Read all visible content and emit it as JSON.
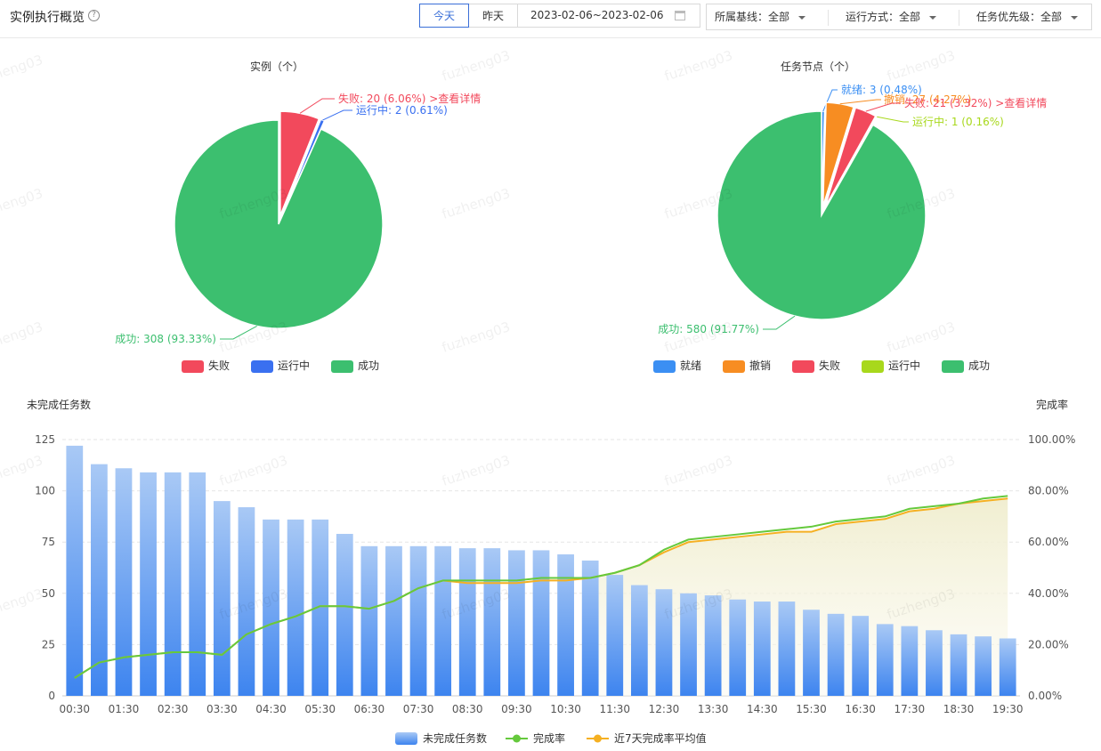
{
  "header": {
    "title": "实例执行概览",
    "help": "?",
    "today": "今天",
    "yesterday": "昨天",
    "date_range": "2023-02-06~2023-02-06",
    "filter_baseline": "所属基线：全部",
    "filter_run_mode": "运行方式：全部",
    "filter_priority": "任务优先级：全部"
  },
  "pie_instances": {
    "title": "实例（个）",
    "slices": [
      {
        "name": "失败",
        "value": 20,
        "pct": "6.06%",
        "color": "#f2495c",
        "label": "失败: 20 (6.06%) >查看详情"
      },
      {
        "name": "运行中",
        "value": 2,
        "pct": "0.61%",
        "color": "#3a70f0",
        "label": "运行中: 2 (0.61%)"
      },
      {
        "name": "成功",
        "value": 308,
        "pct": "93.33%",
        "color": "#3cbf6f",
        "label": "成功: 308 (93.33%)"
      }
    ]
  },
  "pie_nodes": {
    "title": "任务节点（个）",
    "slices": [
      {
        "name": "就绪",
        "value": 3,
        "pct": "0.48%",
        "color": "#3b8ff3",
        "label": "就绪: 3 (0.48%)"
      },
      {
        "name": "撤销",
        "value": 27,
        "pct": "4.27%",
        "color": "#f78d22",
        "label": "撤销: 27 (4.27%)"
      },
      {
        "name": "失败",
        "value": 21,
        "pct": "3.32%",
        "color": "#f2495c",
        "label": "失败: 21 (3.32%) >查看详情"
      },
      {
        "name": "运行中",
        "value": 1,
        "pct": "0.16%",
        "color": "#a8d81c",
        "label": "运行中: 1 (0.16%)"
      },
      {
        "name": "成功",
        "value": 580,
        "pct": "91.77%",
        "color": "#3cbf6f",
        "label": "成功: 580 (91.77%)"
      }
    ]
  },
  "watermark": "fuzheng03",
  "chart_data": {
    "type": "bar",
    "left_title": "未完成任务数",
    "right_title": "完成率",
    "ylim": [
      0,
      125
    ],
    "y_ticks": [
      "125",
      "100",
      "75",
      "50",
      "25",
      "0"
    ],
    "y2_ticks": [
      "100.00%",
      "80.00%",
      "60.00%",
      "40.00%",
      "20.00%",
      "0.00%"
    ],
    "x_labels": [
      "00:30",
      "01:30",
      "02:30",
      "03:30",
      "04:30",
      "05:30",
      "06:30",
      "07:30",
      "08:30",
      "09:30",
      "10:30",
      "11:30",
      "12:30",
      "13:30",
      "14:30",
      "15:30",
      "16:30",
      "17:30",
      "18:30",
      "19:30"
    ],
    "series": [
      {
        "name": "未完成任务数",
        "color": "#5b98ee",
        "values": [
          122,
          113,
          111,
          109,
          109,
          109,
          95,
          92,
          86,
          86,
          86,
          79,
          73,
          73,
          73,
          73,
          72,
          72,
          71,
          71,
          69,
          66,
          59,
          54,
          52,
          50,
          49,
          47,
          46,
          46,
          42,
          40,
          39,
          35,
          34,
          32,
          30,
          29,
          28
        ]
      },
      {
        "name": "完成率",
        "color": "#65c93c",
        "values": [
          7,
          13,
          15,
          16,
          17,
          17,
          16,
          24,
          28,
          31,
          35,
          35,
          34,
          37,
          42,
          45,
          45,
          45,
          45,
          46,
          46,
          46,
          48,
          51,
          57,
          61,
          62,
          63,
          64,
          65,
          66,
          68,
          69,
          70,
          73,
          74,
          75,
          77,
          78
        ]
      },
      {
        "name": "近7天完成率平均值",
        "color": "#f5b022",
        "values": [
          7,
          13,
          15,
          16,
          17,
          17,
          16,
          24,
          28,
          31,
          35,
          35,
          34,
          37,
          42,
          45,
          44,
          44,
          44,
          45,
          45,
          46,
          48,
          51,
          56,
          60,
          61,
          62,
          63,
          64,
          64,
          67,
          68,
          69,
          72,
          73,
          75,
          76,
          77
        ]
      }
    ]
  }
}
